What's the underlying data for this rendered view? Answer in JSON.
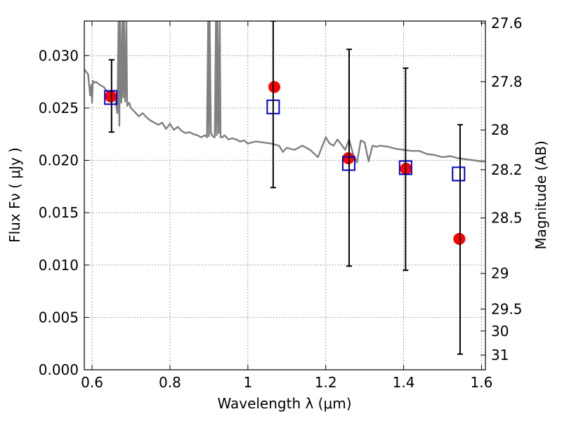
{
  "chart_data": {
    "type": "scatter",
    "title": "",
    "xlabel": "Wavelength  λ (μm)",
    "ylabel": "Flux  Fν  ( μJy )",
    "ylabel_right": "Magnitude (AB)",
    "xlim": [
      0.58,
      1.61
    ],
    "ylim": [
      0.0,
      0.0333
    ],
    "grid": true,
    "x_ticks": [
      0.6,
      0.8,
      1.0,
      1.2,
      1.4,
      1.6
    ],
    "x_tick_labels": [
      "0.6",
      "0.8",
      "1",
      "1.2",
      "1.4",
      "1.6"
    ],
    "y_ticks": [
      0.0,
      0.005,
      0.01,
      0.015,
      0.02,
      0.025,
      0.03
    ],
    "y_tick_labels": [
      "0.000",
      "0.005",
      "0.010",
      "0.015",
      "0.020",
      "0.025",
      "0.030"
    ],
    "right_ticks": [
      {
        "label": "27.6",
        "flux": 0.0331
      },
      {
        "label": "27.8",
        "flux": 0.0275
      },
      {
        "label": "28",
        "flux": 0.0229
      },
      {
        "label": "28.2",
        "flux": 0.0191
      },
      {
        "label": "28.5",
        "flux": 0.0145
      },
      {
        "label": "29",
        "flux": 0.0092
      },
      {
        "label": "29.5",
        "flux": 0.0058
      },
      {
        "label": "30",
        "flux": 0.0037
      },
      {
        "label": "31",
        "flux": 0.0014
      }
    ],
    "series": [
      {
        "kind": "line",
        "color": "#808080",
        "x": [
          0.58,
          0.59,
          0.595,
          0.598,
          0.6,
          0.602,
          0.605,
          0.61,
          0.62,
          0.63,
          0.64,
          0.65,
          0.66,
          0.665,
          0.668,
          0.67,
          0.672,
          0.675,
          0.678,
          0.68,
          0.682,
          0.685,
          0.688,
          0.69,
          0.692,
          0.695,
          0.698,
          0.7,
          0.71,
          0.72,
          0.73,
          0.74,
          0.75,
          0.76,
          0.77,
          0.78,
          0.79,
          0.8,
          0.81,
          0.82,
          0.83,
          0.84,
          0.85,
          0.86,
          0.87,
          0.88,
          0.89,
          0.895,
          0.898,
          0.9,
          0.902,
          0.905,
          0.91,
          0.915,
          0.918,
          0.92,
          0.922,
          0.925,
          0.928,
          0.93,
          0.935,
          0.94,
          0.95,
          0.96,
          0.97,
          0.98,
          0.99,
          1.0,
          1.02,
          1.04,
          1.06,
          1.08,
          1.09,
          1.1,
          1.12,
          1.14,
          1.16,
          1.18,
          1.2,
          1.21,
          1.22,
          1.23,
          1.24,
          1.25,
          1.26,
          1.27,
          1.28,
          1.29,
          1.3,
          1.31,
          1.32,
          1.33,
          1.34,
          1.36,
          1.38,
          1.4,
          1.42,
          1.44,
          1.46,
          1.48,
          1.5,
          1.52,
          1.54,
          1.56,
          1.58,
          1.6,
          1.61
        ],
        "y": [
          0.0287,
          0.0282,
          0.0262,
          0.0272,
          0.0255,
          0.0276,
          0.0274,
          0.0275,
          0.0272,
          0.027,
          0.0265,
          0.026,
          0.0258,
          0.0245,
          0.0333,
          0.0233,
          0.0333,
          0.0255,
          0.0333,
          0.026,
          0.0333,
          0.0256,
          0.0333,
          0.0252,
          0.0253,
          0.0255,
          0.0252,
          0.025,
          0.0246,
          0.0242,
          0.0245,
          0.0241,
          0.0238,
          0.0236,
          0.0234,
          0.0236,
          0.023,
          0.0235,
          0.0229,
          0.0232,
          0.0228,
          0.0226,
          0.0227,
          0.0225,
          0.0224,
          0.0222,
          0.0224,
          0.0222,
          0.0333,
          0.0223,
          0.0333,
          0.0226,
          0.0223,
          0.0222,
          0.0333,
          0.0224,
          0.0333,
          0.0226,
          0.0333,
          0.0222,
          0.0222,
          0.0224,
          0.022,
          0.0221,
          0.022,
          0.0218,
          0.0219,
          0.0216,
          0.0218,
          0.0217,
          0.0216,
          0.0214,
          0.0208,
          0.0212,
          0.021,
          0.0214,
          0.021,
          0.0203,
          0.0222,
          0.0216,
          0.0214,
          0.022,
          0.0215,
          0.021,
          0.022,
          0.0206,
          0.0198,
          0.0219,
          0.0217,
          0.0199,
          0.0214,
          0.0213,
          0.0214,
          0.0213,
          0.0211,
          0.021,
          0.0209,
          0.0209,
          0.0206,
          0.0205,
          0.0203,
          0.0204,
          0.0202,
          0.0201,
          0.02,
          0.0199,
          0.0199
        ]
      },
      {
        "kind": "points",
        "marker": "circle",
        "color": "#ff0000",
        "x": [
          0.648,
          1.068,
          1.258,
          1.406,
          1.543
        ],
        "y": [
          0.0261,
          0.027,
          0.0202,
          0.0192,
          0.0125
        ]
      },
      {
        "kind": "points",
        "marker": "square",
        "color": "#0000cc",
        "x": [
          0.648,
          1.065,
          1.259,
          1.405,
          1.541
        ],
        "y": [
          0.026,
          0.0251,
          0.0197,
          0.0193,
          0.0187
        ]
      },
      {
        "kind": "errorbars",
        "color": "#000000",
        "x": [
          0.65,
          1.065,
          1.26,
          1.405,
          1.545
        ],
        "low": [
          0.0227,
          0.0174,
          0.0099,
          0.0095,
          0.0015
        ],
        "high": [
          0.0296,
          0.0333,
          0.0306,
          0.0288,
          0.0234
        ]
      }
    ]
  }
}
